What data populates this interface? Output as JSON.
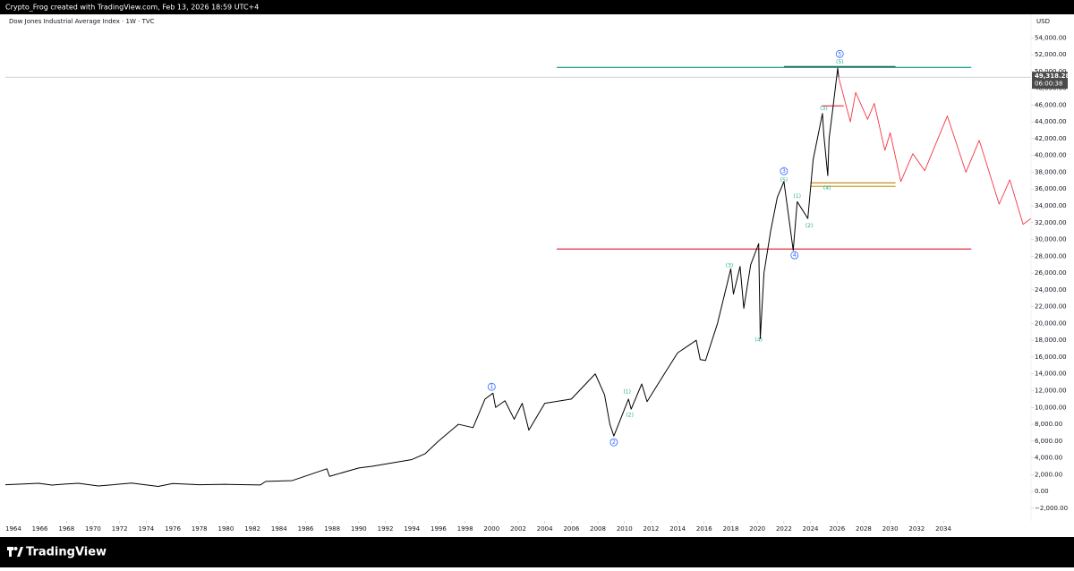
{
  "chart_data": {
    "type": "line",
    "attribution": "Crypto_Frog created with TradingView.com, Feb 13, 2026 18:59 UTC+4",
    "title": "Dow Jones Industrial Average Index · 1W · TVC",
    "currency": "USD",
    "brand": "TradingView",
    "xlim": [
      1963.4,
      2040.6
    ],
    "ylim": [
      -3500,
      56800
    ],
    "grid": false,
    "xticks": [
      1964,
      1966,
      1968,
      1970,
      1972,
      1974,
      1976,
      1978,
      1980,
      1982,
      1984,
      1986,
      1988,
      1990,
      1992,
      1994,
      1996,
      1998,
      2000,
      2002,
      2004,
      2006,
      2008,
      2010,
      2012,
      2014,
      2016,
      2018,
      2020,
      2022,
      2024,
      2026,
      2028,
      2030,
      2032,
      2034
    ],
    "yticks": [
      {
        "value": 54000,
        "label": "54,000.00"
      },
      {
        "value": 52000,
        "label": "52,000.00"
      },
      {
        "value": 50000,
        "label": "50,000.00"
      },
      {
        "value": 48000,
        "label": "48,000.00"
      },
      {
        "value": 46000,
        "label": "46,000.00"
      },
      {
        "value": 44000,
        "label": "44,000.00"
      },
      {
        "value": 42000,
        "label": "42,000.00"
      },
      {
        "value": 40000,
        "label": "40,000.00"
      },
      {
        "value": 38000,
        "label": "38,000.00"
      },
      {
        "value": 36000,
        "label": "36,000.00"
      },
      {
        "value": 34000,
        "label": "34,000.00"
      },
      {
        "value": 32000,
        "label": "32,000.00"
      },
      {
        "value": 30000,
        "label": "30,000.00"
      },
      {
        "value": 28000,
        "label": "28,000.00"
      },
      {
        "value": 26000,
        "label": "26,000.00"
      },
      {
        "value": 24000,
        "label": "24,000.00"
      },
      {
        "value": 22000,
        "label": "22,000.00"
      },
      {
        "value": 20000,
        "label": "20,000.00"
      },
      {
        "value": 18000,
        "label": "18,000.00"
      },
      {
        "value": 16000,
        "label": "16,000.00"
      },
      {
        "value": 14000,
        "label": "14,000.00"
      },
      {
        "value": 12000,
        "label": "12,000.00"
      },
      {
        "value": 10000,
        "label": "10,000.00"
      },
      {
        "value": 8000,
        "label": "8,000.00"
      },
      {
        "value": 6000,
        "label": "6,000.00"
      },
      {
        "value": 4000,
        "label": "4,000.00"
      },
      {
        "value": 2000,
        "label": "2,000.00"
      },
      {
        "value": 0,
        "label": "0.00"
      },
      {
        "value": -2000,
        "label": "−2,000.00"
      }
    ],
    "series": [
      {
        "color": "#000000",
        "x": [
          1963.4,
          1964,
          1965.9,
          1966.9,
          1968,
          1968.9,
          1970.4,
          1972.9,
          1974.9,
          1976,
          1978,
          1980,
          1982.6,
          1983,
          1985,
          1987.6,
          1987.8,
          1990,
          1991,
          1994,
          1995,
          1996,
          1997.5,
          1998.6,
          1999.5,
          2000.1,
          2000.3,
          2001.0,
          2001.7,
          2002.3,
          2002.8,
          2004,
          2006,
          2007.8,
          2008.5,
          2008.9,
          2009.2,
          2010.3,
          2010.5,
          2011.3,
          2011.7,
          2013,
          2014,
          2015.4,
          2015.7,
          2016.1,
          2017,
          2018.0,
          2018.2,
          2018.7,
          2018.98,
          2019.5,
          2020.1,
          2020.22,
          2020.5,
          2021,
          2021.5,
          2022.0,
          2022.7,
          2023.0,
          2023.8,
          2024.2,
          2024.9,
          2025.0,
          2025.3,
          2025.4,
          2025.7,
          2026.05,
          2026.12
        ],
        "values": [
          800,
          840,
          980,
          760,
          900,
          980,
          650,
          1000,
          600,
          950,
          800,
          850,
          780,
          1200,
          1300,
          2700,
          1800,
          2800,
          3000,
          3800,
          4500,
          6000,
          8000,
          7600,
          11000,
          11700,
          10000,
          10800,
          8600,
          10500,
          7300,
          10500,
          11000,
          14000,
          11500,
          8000,
          6600,
          11000,
          9800,
          12800,
          10700,
          14000,
          16500,
          18000,
          15700,
          15600,
          20000,
          26500,
          23500,
          26800,
          21800,
          27000,
          29500,
          18200,
          26000,
          31000,
          35000,
          36900,
          28700,
          34500,
          32500,
          39500,
          45000,
          42500,
          37600,
          42000,
          45800,
          50400,
          49318.28
        ]
      },
      {
        "color": "#f23645",
        "x": [
          2026.12,
          2027.0,
          2027.4,
          2028.3,
          2028.8,
          2029.6,
          2030.0,
          2030.8,
          2031.7,
          2032.6,
          2034.3,
          2035.7,
          2036.7,
          2038.2,
          2039.0,
          2040.0,
          2040.6
        ],
        "values": [
          49318.28,
          44000,
          47500,
          44300,
          46200,
          40600,
          42700,
          36900,
          40200,
          38200,
          44700,
          38000,
          41800,
          34200,
          37100,
          31800,
          32500
        ]
      }
    ],
    "levels": [
      {
        "value": 50480,
        "from": 2004.9,
        "to": 2036.1,
        "color": "#089981"
      },
      {
        "value": 50590,
        "from": 2022.0,
        "to": 2030.4,
        "color": "#2a5d4f"
      },
      {
        "value": 28860,
        "from": 2004.9,
        "to": 2036.1,
        "color": "#e0303f"
      },
      {
        "value": 36740,
        "from": 2024.0,
        "to": 2030.4,
        "color": "#b8860b"
      },
      {
        "value": 36320,
        "from": 2024.0,
        "to": 2030.4,
        "color": "#c9a227"
      },
      {
        "value": 45900,
        "from": 2024.85,
        "to": 2026.5,
        "color": "#e0303f"
      }
    ],
    "last_price": {
      "value": 49318.28,
      "label": "49,318.28",
      "countdown": "06:00:38"
    },
    "annotations": [
      {
        "text": "1",
        "x": 2000.0,
        "y": 12460,
        "style": "circle"
      },
      {
        "text": "2",
        "x": 2009.2,
        "y": 5860,
        "style": "circle"
      },
      {
        "text": "3",
        "x": 2022.0,
        "y": 38130,
        "style": "circle"
      },
      {
        "text": "4",
        "x": 2022.8,
        "y": 28120,
        "style": "circle"
      },
      {
        "text": "5",
        "x": 2026.2,
        "y": 52080,
        "style": "circle"
      },
      {
        "text": "(1)",
        "x": 2010.2,
        "y": 11820,
        "style": "paren"
      },
      {
        "text": "(2)",
        "x": 2010.4,
        "y": 9050,
        "style": "paren"
      },
      {
        "text": "(3)",
        "x": 2017.9,
        "y": 26840,
        "style": "paren"
      },
      {
        "text": "(4)",
        "x": 2020.1,
        "y": 18000,
        "style": "paren"
      },
      {
        "text": "(5)",
        "x": 2022.0,
        "y": 37060,
        "style": "paren"
      },
      {
        "text": "(1)",
        "x": 2023.0,
        "y": 35140,
        "style": "paren"
      },
      {
        "text": "(2)",
        "x": 2023.9,
        "y": 31630,
        "style": "paren"
      },
      {
        "text": "(3)",
        "x": 2025.0,
        "y": 45580,
        "style": "paren"
      },
      {
        "text": "(4)",
        "x": 2025.25,
        "y": 36100,
        "style": "paren"
      },
      {
        "text": "(5)",
        "x": 2026.2,
        "y": 51120,
        "style": "paren"
      }
    ]
  }
}
